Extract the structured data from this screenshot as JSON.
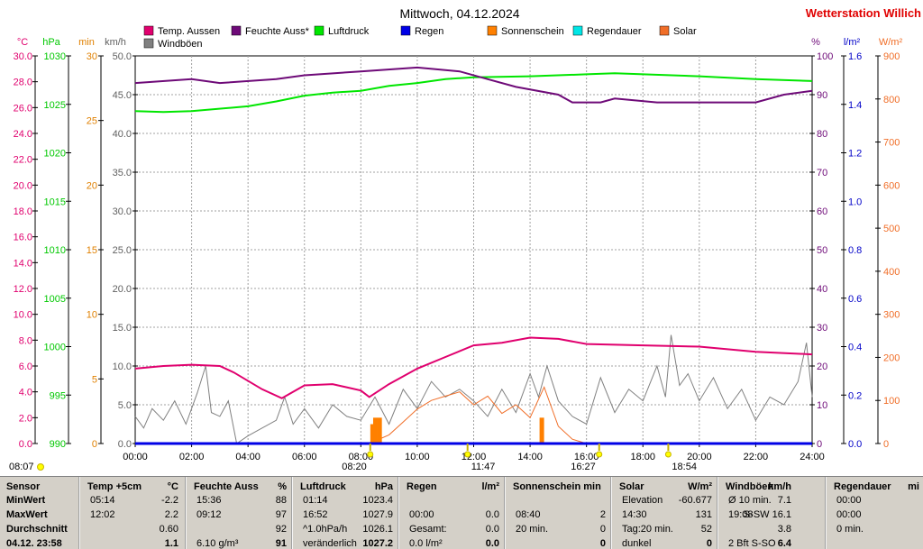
{
  "chart_data": {
    "type": "line",
    "title": "Mittwoch, 04.12.2024",
    "station": "Wetterstation Willich",
    "legend": [
      {
        "name": "Temp. Aussen",
        "color": "#e0006e"
      },
      {
        "name": "Feuchte Auss*",
        "color": "#6e0a78"
      },
      {
        "name": "Luftdruck",
        "color": "#00e600"
      },
      {
        "name": "Regen",
        "color": "#0000e6"
      },
      {
        "name": "Sonnenschein",
        "color": "#ff8000"
      },
      {
        "name": "Regendauer",
        "color": "#00e6e6"
      },
      {
        "name": "Solar",
        "color": "#f06e28"
      },
      {
        "name": "Windböen",
        "color": "#808080"
      }
    ],
    "axes": {
      "temp": {
        "unit": "°C",
        "min": 0,
        "max": 30,
        "ticks": [
          "0.0",
          "2.0",
          "4.0",
          "6.0",
          "8.0",
          "10.0",
          "12.0",
          "14.0",
          "16.0",
          "18.0",
          "20.0",
          "22.0",
          "24.0",
          "26.0",
          "28.0",
          "30.0"
        ],
        "color": "#e0006e"
      },
      "pressure": {
        "unit": "hPa",
        "min": 990,
        "max": 1030,
        "ticks": [
          "990",
          "995",
          "1000",
          "1005",
          "1010",
          "1015",
          "1020",
          "1025",
          "1030"
        ],
        "color": "#00c800"
      },
      "minutes": {
        "unit": "min",
        "min": 0,
        "max": 30,
        "ticks": [
          "0",
          "5",
          "10",
          "15",
          "20",
          "25",
          "30"
        ],
        "color": "#e08000"
      },
      "wind": {
        "unit": "km/h",
        "min": 0,
        "max": 50,
        "ticks": [
          "0.0",
          "5.0",
          "10.0",
          "15.0",
          "20.0",
          "25.0",
          "30.0",
          "35.0",
          "40.0",
          "45.0",
          "50.0"
        ],
        "color": "#606060"
      },
      "humidity": {
        "unit": "%",
        "min": 0,
        "max": 100,
        "ticks": [
          "0",
          "10",
          "20",
          "30",
          "40",
          "50",
          "60",
          "70",
          "80",
          "90",
          "100"
        ],
        "color": "#6e0a78"
      },
      "rain": {
        "unit": "l/m²",
        "min": 0,
        "max": 1.6,
        "ticks": [
          "0.0",
          "0.2",
          "0.4",
          "0.6",
          "0.8",
          "1.0",
          "1.2",
          "1.4",
          "1.6"
        ],
        "color": "#0000c8"
      },
      "solar": {
        "unit": "W/m²",
        "min": 0,
        "max": 900,
        "ticks": [
          "0",
          "100",
          "200",
          "300",
          "400",
          "500",
          "600",
          "700",
          "800",
          "900"
        ],
        "color": "#f06e28"
      }
    },
    "x_ticks": [
      "00:00",
      "02:00",
      "04:00",
      "06:00",
      "08:00",
      "10:00",
      "12:00",
      "14:00",
      "16:00",
      "18:00",
      "20:00",
      "22:00",
      "24:00"
    ],
    "x_range_hours": [
      0,
      24
    ],
    "time_markers": [
      "08:07",
      "08:20",
      "11:47",
      "16:27",
      "18:54"
    ],
    "series": [
      {
        "name": "Temp. Aussen",
        "axis": "temp",
        "points": [
          [
            0,
            5.8
          ],
          [
            1,
            6.0
          ],
          [
            2,
            6.1
          ],
          [
            3,
            6.0
          ],
          [
            3.5,
            5.5
          ],
          [
            4.5,
            4.2
          ],
          [
            5.2,
            3.5
          ],
          [
            6,
            4.5
          ],
          [
            7,
            4.6
          ],
          [
            8,
            4.1
          ],
          [
            8.3,
            3.6
          ],
          [
            9,
            4.6
          ],
          [
            10,
            5.8
          ],
          [
            11,
            6.7
          ],
          [
            12,
            7.6
          ],
          [
            13,
            7.8
          ],
          [
            14,
            8.2
          ],
          [
            15,
            8.1
          ],
          [
            16,
            7.7
          ],
          [
            18,
            7.6
          ],
          [
            20,
            7.5
          ],
          [
            22,
            7.1
          ],
          [
            24,
            6.9
          ]
        ]
      },
      {
        "name": "Feuchte Auss*",
        "axis": "humidity",
        "points": [
          [
            0,
            93
          ],
          [
            2,
            94
          ],
          [
            3,
            93
          ],
          [
            5,
            94
          ],
          [
            6,
            95
          ],
          [
            8,
            96
          ],
          [
            10,
            97
          ],
          [
            11.5,
            96
          ],
          [
            12.5,
            94
          ],
          [
            13.5,
            92
          ],
          [
            15,
            90
          ],
          [
            15.5,
            88
          ],
          [
            16.5,
            88
          ],
          [
            17,
            89
          ],
          [
            18.5,
            88
          ],
          [
            20,
            88
          ],
          [
            22,
            88
          ],
          [
            23,
            90
          ],
          [
            24,
            91
          ]
        ]
      },
      {
        "name": "Luftdruck",
        "axis": "pressure",
        "points": [
          [
            0,
            1024.3
          ],
          [
            1,
            1024.2
          ],
          [
            2,
            1024.3
          ],
          [
            4,
            1024.8
          ],
          [
            5,
            1025.3
          ],
          [
            6,
            1025.9
          ],
          [
            7,
            1026.2
          ],
          [
            8,
            1026.4
          ],
          [
            9,
            1026.9
          ],
          [
            10,
            1027.2
          ],
          [
            11,
            1027.6
          ],
          [
            12,
            1027.8
          ],
          [
            14,
            1027.9
          ],
          [
            16,
            1028.1
          ],
          [
            17,
            1028.2
          ],
          [
            18,
            1028.1
          ],
          [
            20,
            1027.9
          ],
          [
            22,
            1027.6
          ],
          [
            24,
            1027.4
          ]
        ]
      },
      {
        "name": "Windböen",
        "axis": "wind",
        "points": [
          [
            0,
            3.5
          ],
          [
            0.3,
            2.0
          ],
          [
            0.6,
            4.5
          ],
          [
            1,
            3.0
          ],
          [
            1.4,
            5.5
          ],
          [
            1.8,
            2.5
          ],
          [
            2.2,
            6.5
          ],
          [
            2.5,
            10.0
          ],
          [
            2.7,
            4.0
          ],
          [
            3.0,
            3.5
          ],
          [
            3.3,
            5.5
          ],
          [
            3.6,
            0.0
          ],
          [
            4.0,
            1.0
          ],
          [
            5.0,
            3.0
          ],
          [
            5.3,
            6.0
          ],
          [
            5.6,
            2.5
          ],
          [
            6.0,
            4.5
          ],
          [
            6.5,
            2.0
          ],
          [
            7.0,
            5.0
          ],
          [
            7.5,
            3.5
          ],
          [
            8.0,
            3.0
          ],
          [
            8.5,
            6.0
          ],
          [
            9.0,
            2.5
          ],
          [
            9.5,
            7.0
          ],
          [
            10,
            4.5
          ],
          [
            10.5,
            8.0
          ],
          [
            11,
            6.0
          ],
          [
            11.5,
            7.0
          ],
          [
            12,
            5.5
          ],
          [
            12.5,
            3.5
          ],
          [
            13,
            7.0
          ],
          [
            13.5,
            4.0
          ],
          [
            14,
            9.0
          ],
          [
            14.3,
            6.0
          ],
          [
            14.6,
            10.0
          ],
          [
            15,
            5.5
          ],
          [
            15.5,
            3.5
          ],
          [
            16,
            2.5
          ],
          [
            16.5,
            8.5
          ],
          [
            17,
            4.0
          ],
          [
            17.5,
            7.0
          ],
          [
            18,
            5.5
          ],
          [
            18.5,
            10.0
          ],
          [
            18.8,
            6.0
          ],
          [
            19.0,
            14.0
          ],
          [
            19.3,
            7.5
          ],
          [
            19.6,
            9.0
          ],
          [
            20,
            5.5
          ],
          [
            20.5,
            8.5
          ],
          [
            21,
            4.5
          ],
          [
            21.5,
            7.0
          ],
          [
            22,
            3.0
          ],
          [
            22.5,
            6.0
          ],
          [
            23,
            5.0
          ],
          [
            23.5,
            8.0
          ],
          [
            23.8,
            13.0
          ],
          [
            24,
            6.0
          ]
        ]
      },
      {
        "name": "Solar",
        "axis": "solar",
        "points": [
          [
            8.3,
            0
          ],
          [
            9,
            20
          ],
          [
            9.5,
            50
          ],
          [
            10,
            80
          ],
          [
            10.5,
            100
          ],
          [
            11,
            110
          ],
          [
            11.5,
            120
          ],
          [
            12,
            90
          ],
          [
            12.5,
            110
          ],
          [
            13,
            70
          ],
          [
            13.5,
            90
          ],
          [
            14,
            60
          ],
          [
            14.5,
            131
          ],
          [
            15,
            40
          ],
          [
            15.5,
            10
          ],
          [
            16,
            0
          ]
        ]
      },
      {
        "name": "Sonnenschein",
        "axis": "minutes",
        "bars": [
          [
            8.4,
            1.5
          ],
          [
            8.5,
            2.0
          ],
          [
            8.65,
            2.0
          ],
          [
            14.4,
            2.0
          ]
        ]
      },
      {
        "name": "Regen",
        "axis": "rain",
        "points": [
          [
            0,
            0
          ],
          [
            24,
            0
          ]
        ]
      }
    ]
  },
  "stats": {
    "headers": {
      "sensor": "Sensor",
      "temp": "Temp +5cm",
      "temp_unit": "°C",
      "feuchte": "Feuchte Auss",
      "feuchte_unit": "%",
      "luft": "Luftdruck",
      "luft_unit": "hPa",
      "regen": "Regen",
      "regen_unit": "l/m²",
      "sonne": "Sonnenschein min",
      "solar": "Solar",
      "solar_unit": "W/m²",
      "wind": "Windböen",
      "wind_unit": "km/h",
      "regendauer": "Regendauer",
      "regendauer_unit": "mi"
    },
    "labels": [
      "MinWert",
      "MaxWert",
      "Durchschnitt",
      "04.12. 23:58"
    ],
    "temp": [
      [
        "05:14",
        "-2.2"
      ],
      [
        "12:02",
        "2.2"
      ],
      [
        "",
        "0.60"
      ],
      [
        "",
        "1.1"
      ]
    ],
    "feuchte": [
      [
        "15:36",
        "88"
      ],
      [
        "09:12",
        "97"
      ],
      [
        "",
        "92"
      ],
      [
        "6.10 g/m³",
        "91"
      ]
    ],
    "luft": [
      [
        "01:14",
        "1023.4"
      ],
      [
        "16:52",
        "1027.9"
      ],
      [
        "^1.0hPa/h",
        "1026.1"
      ],
      [
        "veränderlich",
        "1027.2"
      ]
    ],
    "regen": [
      [
        "",
        ""
      ],
      [
        "00:00",
        "0.0"
      ],
      [
        "Gesamt:",
        "0.0"
      ],
      [
        "0.0 l/m²",
        "0.0"
      ]
    ],
    "sonne": [
      [
        "",
        ""
      ],
      [
        "08:40",
        "2"
      ],
      [
        "20 min.",
        "0"
      ],
      [
        "",
        "0"
      ]
    ],
    "solar": [
      [
        "Elevation",
        "-60.677"
      ],
      [
        "14:30",
        "131"
      ],
      [
        "Tag:20 min.",
        "52"
      ],
      [
        "dunkel",
        "0"
      ]
    ],
    "wind": [
      [
        "Ø 10 min.",
        "7.1"
      ],
      [
        "19:08",
        "S-SW 16.1"
      ],
      [
        "",
        "3.8"
      ],
      [
        "2 Bft S-SO",
        "6.4"
      ]
    ],
    "regendauer": [
      [
        "00:00",
        ""
      ],
      [
        "00:00",
        ""
      ],
      [
        "0 min.",
        ""
      ],
      [
        "",
        ""
      ]
    ]
  }
}
